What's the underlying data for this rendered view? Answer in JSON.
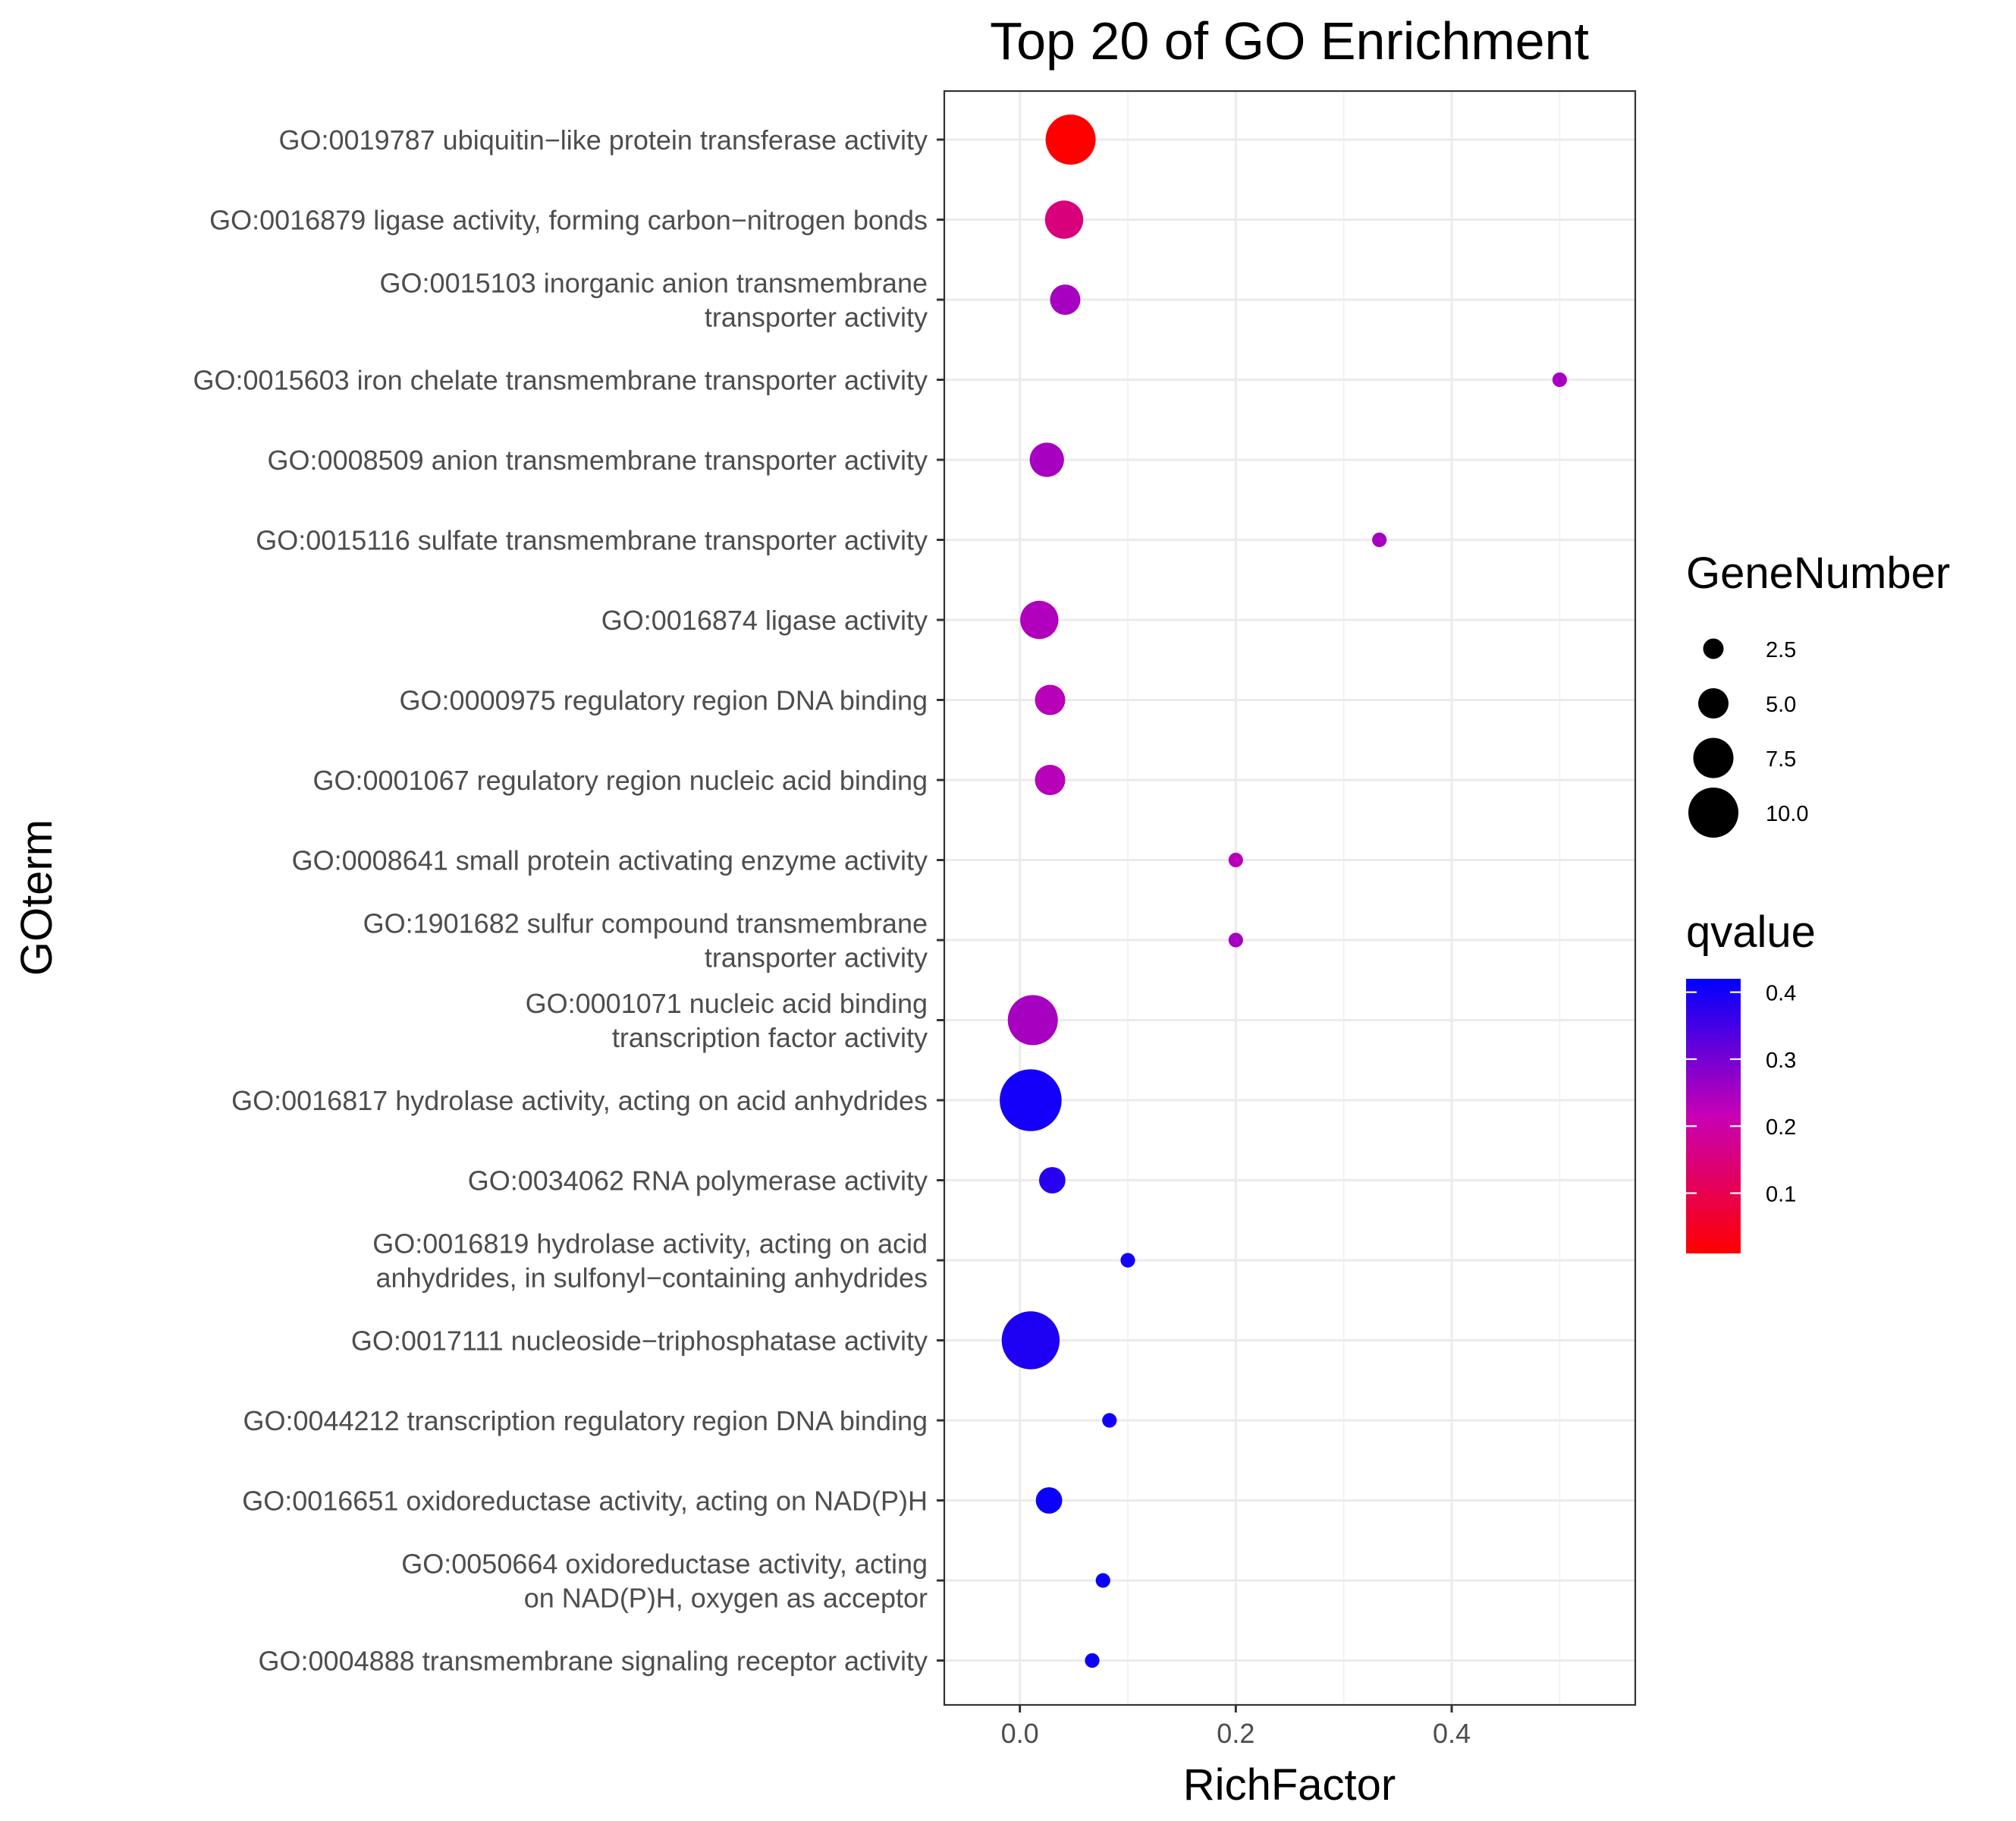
{
  "chart_data": {
    "type": "scatter",
    "title": "Top 20 of GO Enrichment",
    "xlabel": "RichFactor",
    "ylabel": "GOterm",
    "xlim": [
      -0.07,
      0.57
    ],
    "x_ticks": [
      0.0,
      0.2,
      0.4
    ],
    "x_tick_labels": [
      "0.0",
      "0.2",
      "0.4"
    ],
    "grid": true,
    "legend_position": "right",
    "size_legend": {
      "title": "GeneNumber",
      "values": [
        2.5,
        5.0,
        7.5,
        10.0
      ],
      "labels": [
        "2.5",
        "5.0",
        "7.5",
        "10.0"
      ]
    },
    "color_legend": {
      "title": "qvalue",
      "colors": [
        "#FF0000",
        "#0000FF"
      ],
      "range": [
        0.01,
        0.42
      ],
      "ticks": [
        0.1,
        0.2,
        0.3,
        0.4
      ],
      "tick_labels": [
        "0.1",
        "0.2",
        "0.3",
        "0.4"
      ]
    },
    "points": [
      {
        "term": [
          "GO:0019787 ubiquitin−like protein transferase activity"
        ],
        "richFactor": 0.047,
        "geneNumber": 10,
        "qvalue": 0.01
      },
      {
        "term": [
          "GO:0016879 ligase activity, forming carbon−nitrogen bonds"
        ],
        "richFactor": 0.041,
        "geneNumber": 7,
        "qvalue": 0.15
      },
      {
        "term": [
          "GO:0015103 inorganic anion transmembrane",
          "transporter activity"
        ],
        "richFactor": 0.042,
        "geneNumber": 5,
        "qvalue": 0.25
      },
      {
        "term": [
          "GO:0015603 iron chelate transmembrane transporter activity"
        ],
        "richFactor": 0.5,
        "geneNumber": 1,
        "qvalue": 0.25
      },
      {
        "term": [
          "GO:0008509 anion transmembrane transporter activity"
        ],
        "richFactor": 0.025,
        "geneNumber": 6,
        "qvalue": 0.25
      },
      {
        "term": [
          "GO:0015116 sulfate transmembrane transporter activity"
        ],
        "richFactor": 0.333,
        "geneNumber": 1,
        "qvalue": 0.25
      },
      {
        "term": [
          "GO:0016874 ligase activity"
        ],
        "richFactor": 0.018,
        "geneNumber": 7,
        "qvalue": 0.24
      },
      {
        "term": [
          "GO:0000975 regulatory region DNA binding"
        ],
        "richFactor": 0.028,
        "geneNumber": 5,
        "qvalue": 0.23
      },
      {
        "term": [
          "GO:0001067 regulatory region nucleic acid binding"
        ],
        "richFactor": 0.028,
        "geneNumber": 5,
        "qvalue": 0.23
      },
      {
        "term": [
          "GO:0008641 small protein activating enzyme activity"
        ],
        "richFactor": 0.2,
        "geneNumber": 1,
        "qvalue": 0.23
      },
      {
        "term": [
          "GO:1901682 sulfur compound transmembrane",
          "transporter activity"
        ],
        "richFactor": 0.2,
        "geneNumber": 1,
        "qvalue": 0.25
      },
      {
        "term": [
          "GO:0001071 nucleic acid binding",
          "transcription factor activity"
        ],
        "richFactor": 0.012,
        "geneNumber": 10,
        "qvalue": 0.25
      },
      {
        "term": [
          "GO:0016817 hydrolase activity, acting on acid anhydrides"
        ],
        "richFactor": 0.01,
        "geneNumber": 13,
        "qvalue": 0.4
      },
      {
        "term": [
          "GO:0034062 RNA polymerase activity"
        ],
        "richFactor": 0.03,
        "geneNumber": 4,
        "qvalue": 0.38
      },
      {
        "term": [
          "GO:0016819 hydrolase activity, acting on acid",
          "anhydrides, in sulfonyl−containing anhydrides"
        ],
        "richFactor": 0.1,
        "geneNumber": 1,
        "qvalue": 0.4
      },
      {
        "term": [
          "GO:0017111 nucleoside−triphosphatase activity"
        ],
        "richFactor": 0.01,
        "geneNumber": 12,
        "qvalue": 0.39
      },
      {
        "term": [
          "GO:0044212 transcription regulatory region DNA binding"
        ],
        "richFactor": 0.083,
        "geneNumber": 1,
        "qvalue": 0.4
      },
      {
        "term": [
          "GO:0016651 oxidoreductase activity, acting on NAD(P)H"
        ],
        "richFactor": 0.027,
        "geneNumber": 4,
        "qvalue": 0.41
      },
      {
        "term": [
          "GO:0050664 oxidoreductase activity, acting",
          "on NAD(P)H, oxygen as acceptor"
        ],
        "richFactor": 0.077,
        "geneNumber": 1,
        "qvalue": 0.41
      },
      {
        "term": [
          "GO:0004888 transmembrane signaling receptor activity"
        ],
        "richFactor": 0.067,
        "geneNumber": 1,
        "qvalue": 0.41
      }
    ]
  }
}
